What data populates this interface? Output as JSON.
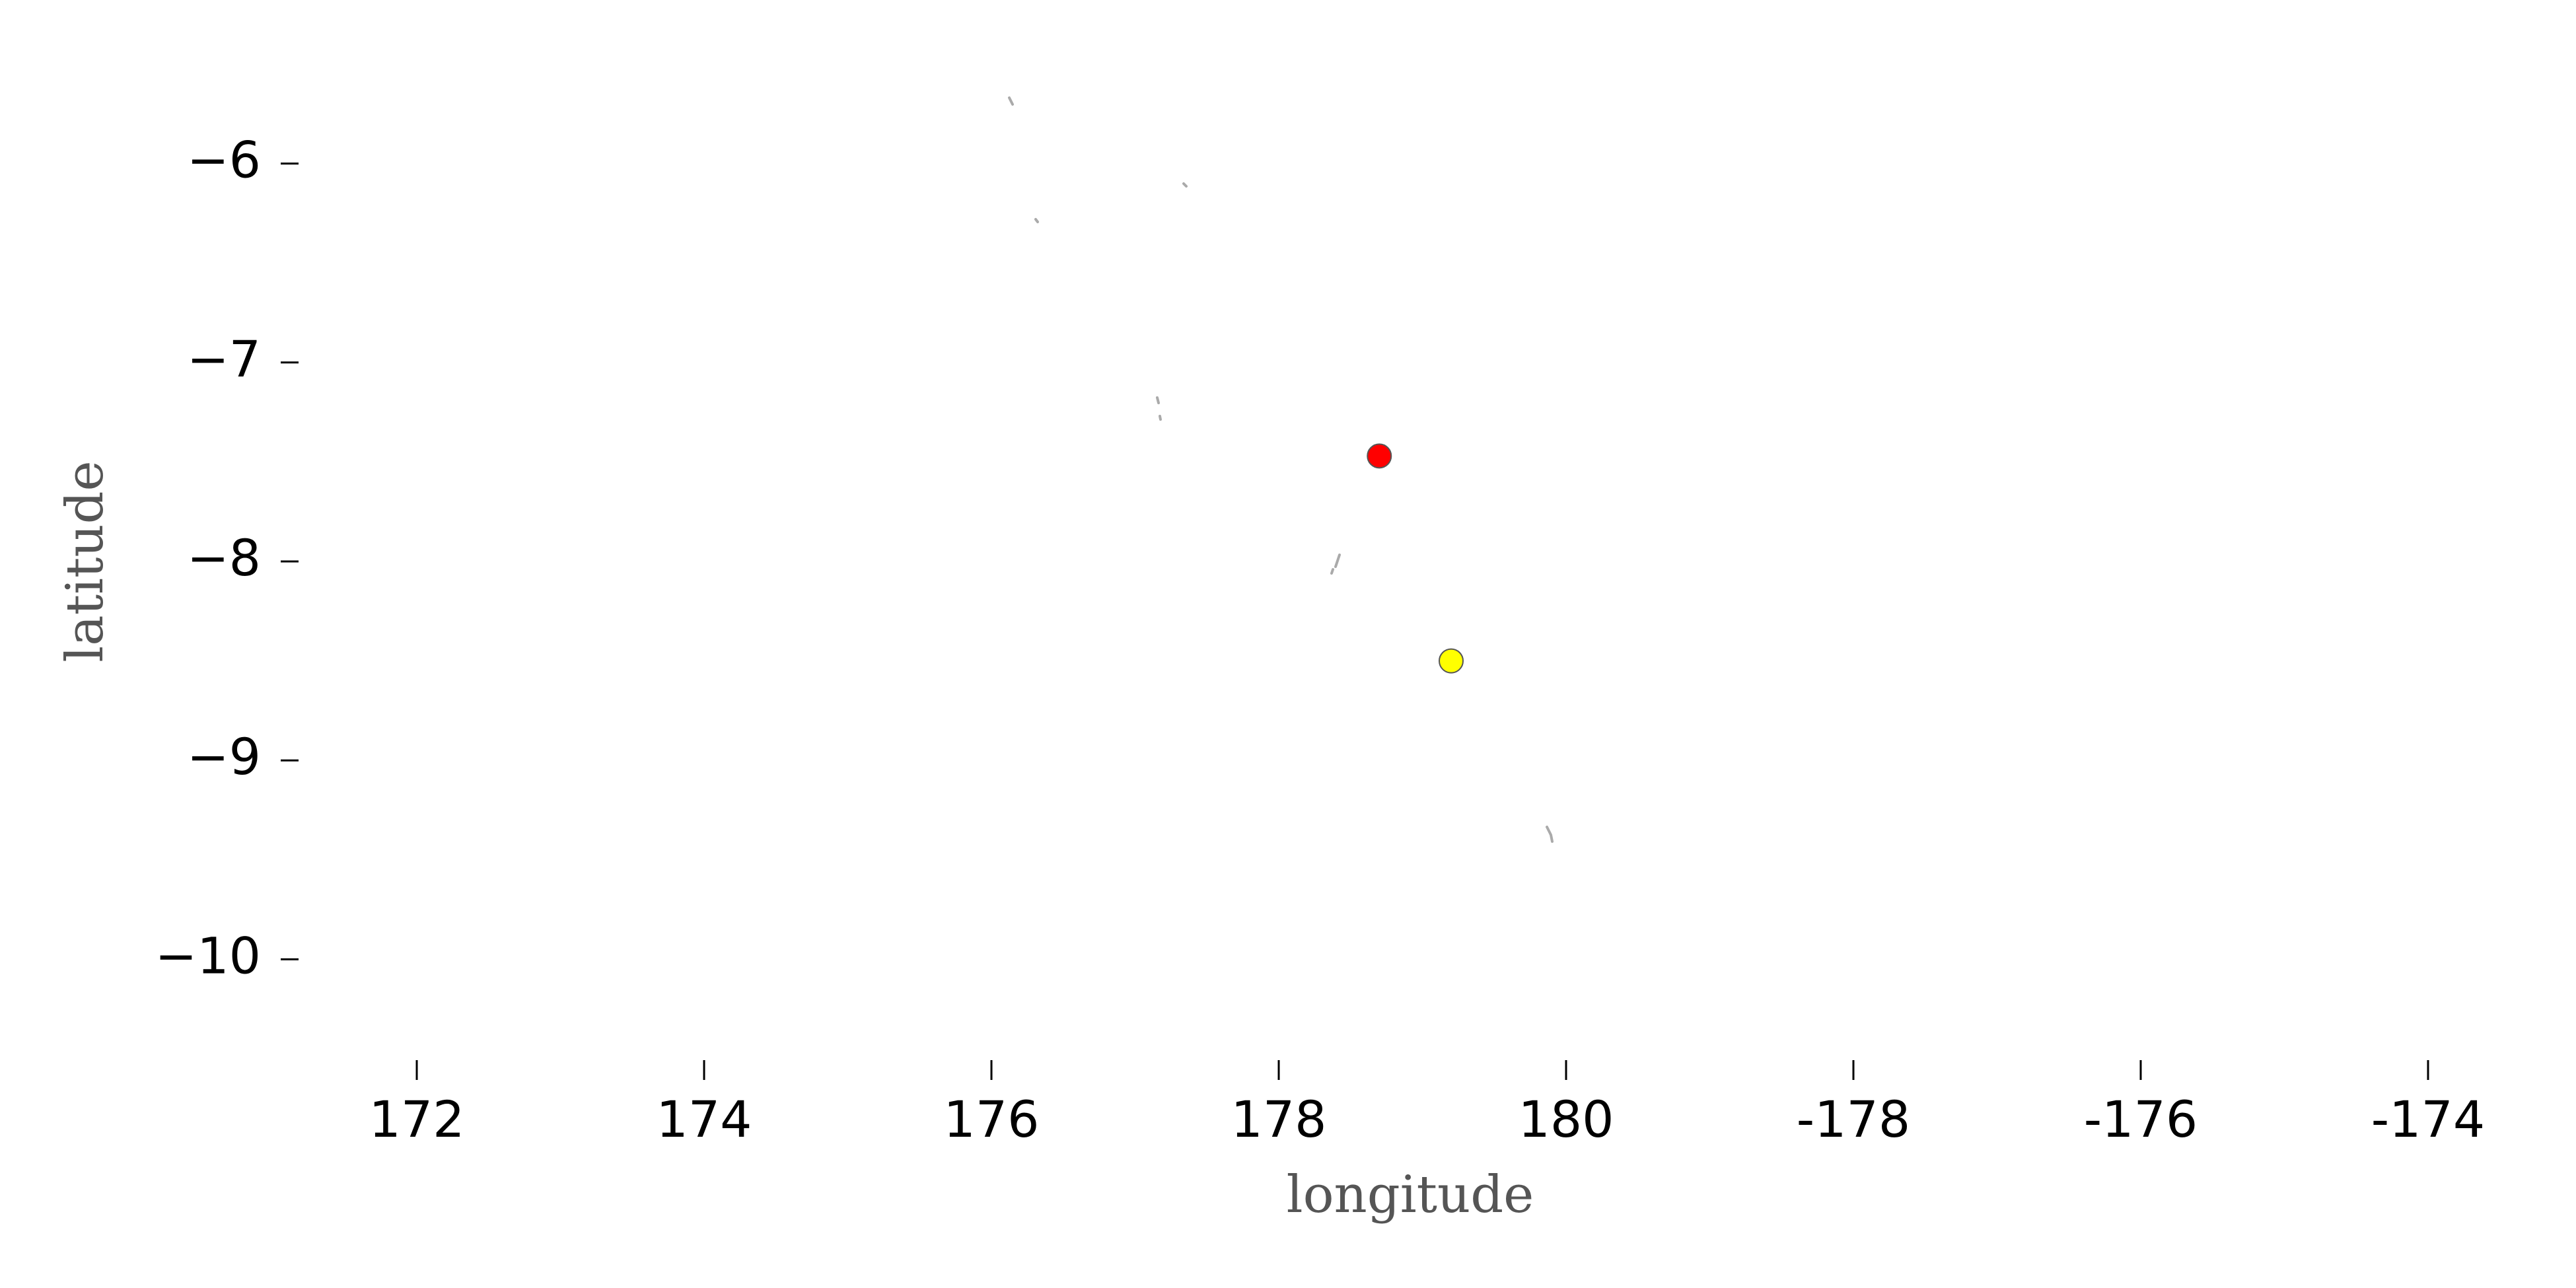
{
  "chart_data": {
    "type": "scatter",
    "xlabel": "longitude",
    "ylabel": "latitude",
    "x": [
      178.7,
      179.2
    ],
    "values": [
      -7.47,
      -8.5
    ],
    "colors": [
      "#ff0000",
      "#ffff00"
    ],
    "xlim": [
      171.2,
      186.8
    ],
    "xticks": [
      172,
      174,
      176,
      178,
      180,
      {
        "value": 182,
        "label": "-178"
      },
      {
        "value": 184,
        "label": "-176"
      },
      {
        "value": 186,
        "label": "-174"
      }
    ],
    "ylim": [
      -10.5,
      -5.5
    ],
    "yticks": [
      {
        "value": -6,
        "label": "−6"
      },
      {
        "value": -7,
        "label": "−7"
      },
      {
        "value": -8,
        "label": "−8"
      },
      {
        "value": -9,
        "label": "−9"
      },
      {
        "value": -10,
        "label": "−10"
      }
    ]
  }
}
